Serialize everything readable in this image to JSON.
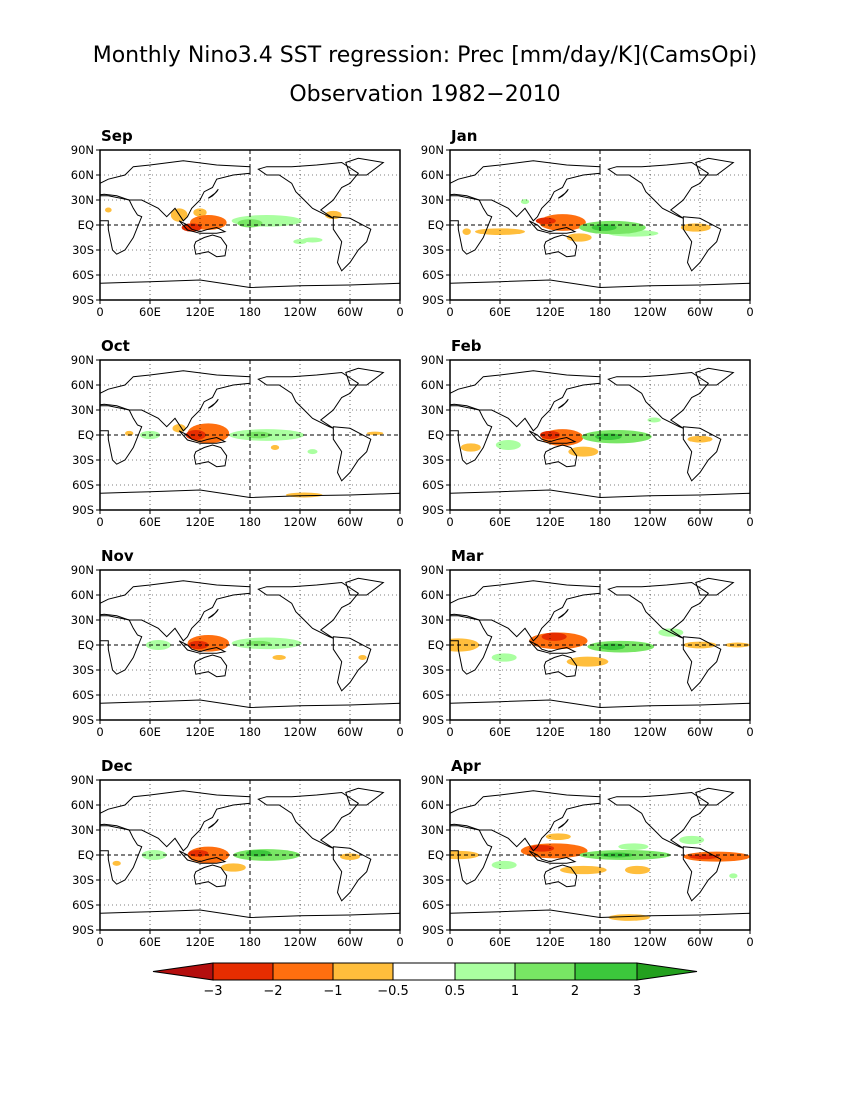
{
  "chart_data": {
    "type": "heatmap",
    "title": "Monthly Nino3.4 SST regression: Prec [mm/day/K](CamsOpi)",
    "subtitle": "Observation 1982−2010",
    "panels": [
      {
        "label": "Sep",
        "anomalies": [
          {
            "kind": "neg",
            "lon": 130,
            "lat": 3,
            "rx": 22,
            "ry": 9,
            "level": 1
          },
          {
            "kind": "neg",
            "lon": 110,
            "lat": -3,
            "rx": 12,
            "ry": 5,
            "level": 2
          },
          {
            "kind": "neg",
            "lon": 95,
            "lat": 12,
            "rx": 10,
            "ry": 8,
            "level": 0
          },
          {
            "kind": "neg",
            "lon": 120,
            "lat": 15,
            "rx": 8,
            "ry": 5,
            "level": 0
          },
          {
            "kind": "pos",
            "lon": 200,
            "lat": 5,
            "rx": 42,
            "ry": 7,
            "level": 0
          },
          {
            "kind": "pos",
            "lon": 180,
            "lat": 2,
            "rx": 15,
            "ry": 5,
            "level": 1
          },
          {
            "kind": "neg",
            "lon": 280,
            "lat": 12,
            "rx": 10,
            "ry": 5,
            "level": 0
          },
          {
            "kind": "neg",
            "lon": 10,
            "lat": 18,
            "rx": 4,
            "ry": 3,
            "level": 0
          },
          {
            "kind": "pos",
            "lon": 255,
            "lat": -18,
            "rx": 12,
            "ry": 3,
            "level": 0
          },
          {
            "kind": "pos",
            "lon": 240,
            "lat": -20,
            "rx": 8,
            "ry": 3,
            "level": 0
          }
        ]
      },
      {
        "label": "Jan",
        "anomalies": [
          {
            "kind": "neg",
            "lon": 135,
            "lat": 3,
            "rx": 28,
            "ry": 10,
            "level": 1
          },
          {
            "kind": "neg",
            "lon": 115,
            "lat": 5,
            "rx": 12,
            "ry": 4,
            "level": 2
          },
          {
            "kind": "neg",
            "lon": 155,
            "lat": -15,
            "rx": 15,
            "ry": 5,
            "level": 0
          },
          {
            "kind": "neg",
            "lon": 60,
            "lat": -8,
            "rx": 30,
            "ry": 4,
            "level": 0
          },
          {
            "kind": "pos",
            "lon": 195,
            "lat": -3,
            "rx": 40,
            "ry": 8,
            "level": 1
          },
          {
            "kind": "pos",
            "lon": 185,
            "lat": -3,
            "rx": 15,
            "ry": 4,
            "level": 2
          },
          {
            "kind": "pos",
            "lon": 220,
            "lat": -10,
            "rx": 30,
            "ry": 4,
            "level": 0
          },
          {
            "kind": "neg",
            "lon": 295,
            "lat": -3,
            "rx": 18,
            "ry": 5,
            "level": 0
          },
          {
            "kind": "neg",
            "lon": 20,
            "lat": -8,
            "rx": 5,
            "ry": 4,
            "level": 0
          },
          {
            "kind": "pos",
            "lon": 90,
            "lat": 28,
            "rx": 5,
            "ry": 3,
            "level": 0
          }
        ]
      },
      {
        "label": "Oct",
        "anomalies": [
          {
            "kind": "neg",
            "lon": 130,
            "lat": 2,
            "rx": 25,
            "ry": 12,
            "level": 1
          },
          {
            "kind": "neg",
            "lon": 115,
            "lat": 0,
            "rx": 12,
            "ry": 6,
            "level": 2
          },
          {
            "kind": "neg",
            "lon": 95,
            "lat": 8,
            "rx": 8,
            "ry": 5,
            "level": 0
          },
          {
            "kind": "pos",
            "lon": 200,
            "lat": 0,
            "rx": 45,
            "ry": 7,
            "level": 0
          },
          {
            "kind": "pos",
            "lon": 190,
            "lat": 0,
            "rx": 15,
            "ry": 4,
            "level": 1
          },
          {
            "kind": "pos",
            "lon": 60,
            "lat": 0,
            "rx": 12,
            "ry": 5,
            "level": 0
          },
          {
            "kind": "neg",
            "lon": 245,
            "lat": -72,
            "rx": 22,
            "ry": 3,
            "level": 0
          },
          {
            "kind": "neg",
            "lon": 210,
            "lat": -15,
            "rx": 5,
            "ry": 3,
            "level": 0
          },
          {
            "kind": "neg",
            "lon": 35,
            "lat": 2,
            "rx": 5,
            "ry": 3,
            "level": 0
          },
          {
            "kind": "pos",
            "lon": 255,
            "lat": -20,
            "rx": 6,
            "ry": 3,
            "level": 0
          },
          {
            "kind": "neg",
            "lon": 330,
            "lat": 2,
            "rx": 10,
            "ry": 2,
            "level": 0
          }
        ]
      },
      {
        "label": "Feb",
        "anomalies": [
          {
            "kind": "neg",
            "lon": 135,
            "lat": -3,
            "rx": 25,
            "ry": 10,
            "level": 1
          },
          {
            "kind": "neg",
            "lon": 120,
            "lat": 0,
            "rx": 12,
            "ry": 5,
            "level": 2
          },
          {
            "kind": "neg",
            "lon": 160,
            "lat": -20,
            "rx": 18,
            "ry": 6,
            "level": 0
          },
          {
            "kind": "neg",
            "lon": 25,
            "lat": -15,
            "rx": 12,
            "ry": 5,
            "level": 0
          },
          {
            "kind": "pos",
            "lon": 200,
            "lat": -2,
            "rx": 42,
            "ry": 8,
            "level": 1
          },
          {
            "kind": "pos",
            "lon": 190,
            "lat": -2,
            "rx": 16,
            "ry": 4,
            "level": 2
          },
          {
            "kind": "pos",
            "lon": 70,
            "lat": -12,
            "rx": 15,
            "ry": 6,
            "level": 0
          },
          {
            "kind": "neg",
            "lon": 300,
            "lat": -5,
            "rx": 15,
            "ry": 4,
            "level": 0
          },
          {
            "kind": "pos",
            "lon": 245,
            "lat": 18,
            "rx": 8,
            "ry": 3,
            "level": 0
          }
        ]
      },
      {
        "label": "Nov",
        "anomalies": [
          {
            "kind": "neg",
            "lon": 130,
            "lat": 2,
            "rx": 25,
            "ry": 10,
            "level": 1
          },
          {
            "kind": "neg",
            "lon": 118,
            "lat": 0,
            "rx": 12,
            "ry": 5,
            "level": 2
          },
          {
            "kind": "pos",
            "lon": 200,
            "lat": 2,
            "rx": 42,
            "ry": 7,
            "level": 0
          },
          {
            "kind": "pos",
            "lon": 190,
            "lat": 2,
            "rx": 15,
            "ry": 3,
            "level": 1
          },
          {
            "kind": "pos",
            "lon": 70,
            "lat": 0,
            "rx": 15,
            "ry": 6,
            "level": 0
          },
          {
            "kind": "neg",
            "lon": 215,
            "lat": -15,
            "rx": 8,
            "ry": 3,
            "level": 0
          },
          {
            "kind": "neg",
            "lon": 315,
            "lat": -15,
            "rx": 5,
            "ry": 3,
            "level": 0
          }
        ]
      },
      {
        "label": "Mar",
        "anomalies": [
          {
            "kind": "neg",
            "lon": 130,
            "lat": 5,
            "rx": 35,
            "ry": 10,
            "level": 1
          },
          {
            "kind": "neg",
            "lon": 125,
            "lat": 10,
            "rx": 15,
            "ry": 5,
            "level": 2
          },
          {
            "kind": "neg",
            "lon": 165,
            "lat": -20,
            "rx": 25,
            "ry": 6,
            "level": 0
          },
          {
            "kind": "neg",
            "lon": 10,
            "lat": 0,
            "rx": 25,
            "ry": 8,
            "level": 0
          },
          {
            "kind": "pos",
            "lon": 205,
            "lat": -2,
            "rx": 40,
            "ry": 7,
            "level": 1
          },
          {
            "kind": "pos",
            "lon": 195,
            "lat": -2,
            "rx": 15,
            "ry": 4,
            "level": 2
          },
          {
            "kind": "pos",
            "lon": 65,
            "lat": -15,
            "rx": 15,
            "ry": 5,
            "level": 0
          },
          {
            "kind": "pos",
            "lon": 265,
            "lat": 15,
            "rx": 15,
            "ry": 5,
            "level": 0
          },
          {
            "kind": "neg",
            "lon": 300,
            "lat": 0,
            "rx": 20,
            "ry": 4,
            "level": 0
          },
          {
            "kind": "neg",
            "lon": 345,
            "lat": 0,
            "rx": 15,
            "ry": 3,
            "level": 0
          }
        ]
      },
      {
        "label": "Dec",
        "anomalies": [
          {
            "kind": "neg",
            "lon": 130,
            "lat": 0,
            "rx": 25,
            "ry": 10,
            "level": 1
          },
          {
            "kind": "neg",
            "lon": 118,
            "lat": 2,
            "rx": 12,
            "ry": 4,
            "level": 2
          },
          {
            "kind": "neg",
            "lon": 160,
            "lat": -15,
            "rx": 15,
            "ry": 5,
            "level": 0
          },
          {
            "kind": "pos",
            "lon": 200,
            "lat": 0,
            "rx": 40,
            "ry": 7,
            "level": 1
          },
          {
            "kind": "pos",
            "lon": 190,
            "lat": 2,
            "rx": 15,
            "ry": 4,
            "level": 2
          },
          {
            "kind": "pos",
            "lon": 65,
            "lat": 0,
            "rx": 15,
            "ry": 6,
            "level": 0
          },
          {
            "kind": "neg",
            "lon": 300,
            "lat": -2,
            "rx": 12,
            "ry": 4,
            "level": 0
          },
          {
            "kind": "neg",
            "lon": 20,
            "lat": -10,
            "rx": 5,
            "ry": 3,
            "level": 0
          }
        ]
      },
      {
        "label": "Apr",
        "anomalies": [
          {
            "kind": "neg",
            "lon": 125,
            "lat": 5,
            "rx": 40,
            "ry": 9,
            "level": 1
          },
          {
            "kind": "neg",
            "lon": 110,
            "lat": 8,
            "rx": 15,
            "ry": 4,
            "level": 2
          },
          {
            "kind": "neg",
            "lon": 130,
            "lat": 22,
            "rx": 15,
            "ry": 4,
            "level": 0
          },
          {
            "kind": "neg",
            "lon": 160,
            "lat": -18,
            "rx": 28,
            "ry": 5,
            "level": 0
          },
          {
            "kind": "neg",
            "lon": 225,
            "lat": -18,
            "rx": 15,
            "ry": 5,
            "level": 0
          },
          {
            "kind": "neg",
            "lon": 215,
            "lat": -75,
            "rx": 25,
            "ry": 4,
            "level": 0
          },
          {
            "kind": "neg",
            "lon": 10,
            "lat": 0,
            "rx": 25,
            "ry": 5,
            "level": 0
          },
          {
            "kind": "neg",
            "lon": 320,
            "lat": -2,
            "rx": 40,
            "ry": 6,
            "level": 1
          },
          {
            "kind": "neg",
            "lon": 305,
            "lat": -2,
            "rx": 18,
            "ry": 3,
            "level": 2
          },
          {
            "kind": "pos",
            "lon": 210,
            "lat": 0,
            "rx": 55,
            "ry": 6,
            "level": 1
          },
          {
            "kind": "pos",
            "lon": 200,
            "lat": 0,
            "rx": 20,
            "ry": 3,
            "level": 2
          },
          {
            "kind": "pos",
            "lon": 65,
            "lat": -12,
            "rx": 15,
            "ry": 5,
            "level": 0
          },
          {
            "kind": "pos",
            "lon": 220,
            "lat": 10,
            "rx": 18,
            "ry": 4,
            "level": 0
          },
          {
            "kind": "pos",
            "lon": 290,
            "lat": 18,
            "rx": 15,
            "ry": 5,
            "level": 0
          },
          {
            "kind": "pos",
            "lon": 340,
            "lat": -25,
            "rx": 5,
            "ry": 3,
            "level": 0
          }
        ]
      }
    ],
    "x_ticks": [
      "0",
      "60E",
      "120E",
      "180",
      "120W",
      "60W",
      "0"
    ],
    "y_ticks": [
      "90N",
      "60N",
      "30N",
      "EQ",
      "30S",
      "60S",
      "90S"
    ],
    "xlim": [
      0,
      360
    ],
    "ylim": [
      -90,
      90
    ],
    "grid": "dashed at 60-degree longitude and 30-degree latitude intervals",
    "colorbar": {
      "labels": [
        "−3",
        "−2",
        "−1",
        "−0.5",
        "0.5",
        "1",
        "2",
        "3"
      ],
      "negative_colors": [
        "#b40e0e",
        "#e62d00",
        "#ff6f0f",
        "#ffbe3c"
      ],
      "positive_colors": [
        "#aaffa0",
        "#78e664",
        "#3cc83c",
        "#23a01e"
      ]
    }
  }
}
